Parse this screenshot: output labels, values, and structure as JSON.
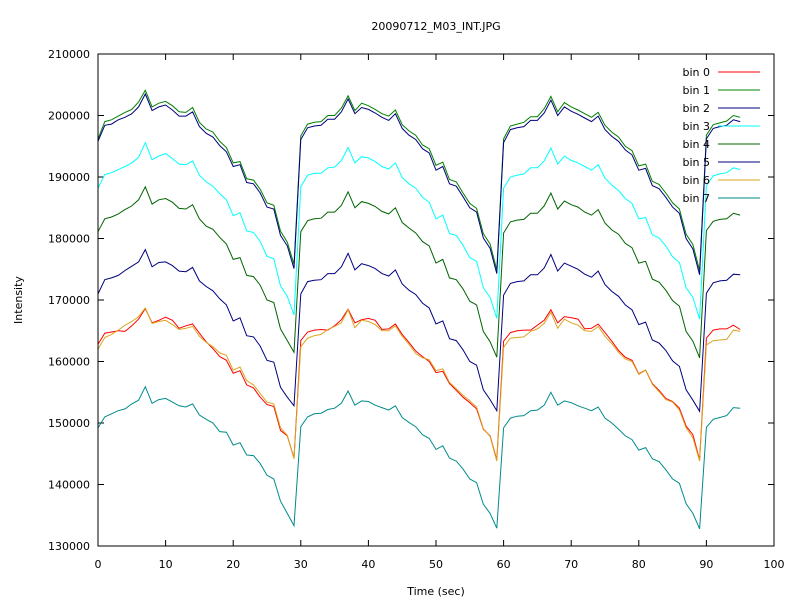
{
  "chart_data": {
    "type": "line",
    "title": "20090712_M03_INT.JPG",
    "xlabel": "Time (sec)",
    "ylabel": "Intensity",
    "xlim": [
      0,
      100
    ],
    "ylim": [
      130000,
      210000
    ],
    "x_ticks": [
      0,
      10,
      20,
      30,
      40,
      50,
      60,
      70,
      80,
      90,
      100
    ],
    "y_ticks": [
      130000,
      140000,
      150000,
      160000,
      170000,
      180000,
      190000,
      200000,
      210000
    ],
    "grid": false,
    "legend_position": "top-right",
    "x": [
      0,
      1,
      2,
      3,
      4,
      5,
      6,
      7,
      8,
      9,
      10,
      11,
      12,
      13,
      14,
      15,
      16,
      17,
      18,
      19,
      20,
      21,
      22,
      23,
      24,
      25,
      26,
      27,
      28,
      29,
      30,
      31,
      32,
      33,
      34,
      35,
      36,
      37,
      38,
      39,
      40,
      41,
      42,
      43,
      44,
      45,
      46,
      47,
      48,
      49,
      50,
      51,
      52,
      53,
      54,
      55,
      56,
      57,
      58,
      59,
      60,
      61,
      62,
      63,
      64,
      65,
      66,
      67,
      68,
      69,
      70,
      71,
      72,
      73,
      74,
      75,
      76,
      77,
      78,
      79,
      80,
      81,
      82,
      83,
      84,
      85,
      86,
      87,
      88,
      89,
      90,
      91,
      92,
      93,
      94,
      95
    ],
    "series": [
      {
        "name": "bin 0",
        "color": "#ff0000",
        "values": [
          162800,
          164600,
          164800,
          165000,
          164900,
          165800,
          166900,
          168600,
          166300,
          166700,
          167200,
          166700,
          165400,
          165800,
          166100,
          164600,
          163200,
          162100,
          160800,
          160200,
          158100,
          158500,
          156200,
          155700,
          154200,
          153000,
          152700,
          148800,
          147900,
          144300,
          163400,
          164800,
          165100,
          165200,
          165100,
          165800,
          166800,
          168500,
          166300,
          166800,
          167000,
          166700,
          165200,
          165300,
          166100,
          164400,
          163100,
          161700,
          160800,
          160000,
          158200,
          158400,
          156400,
          155300,
          154200,
          153300,
          152300,
          149000,
          147900,
          144000,
          163300,
          164700,
          165000,
          165100,
          165100,
          165900,
          166700,
          168400,
          166300,
          167300,
          167100,
          166900,
          165300,
          165400,
          166100,
          164700,
          163300,
          161800,
          160700,
          160200,
          158000,
          158600,
          156400,
          155300,
          154000,
          153500,
          152400,
          149500,
          148100,
          144000,
          163800,
          165100,
          165300,
          165300,
          165900,
          165200
        ]
      },
      {
        "name": "bin 1",
        "color": "#008000",
        "values": [
          196200,
          199000,
          199300,
          199900,
          200500,
          201000,
          202200,
          204100,
          201400,
          202000,
          202300,
          201600,
          200600,
          200500,
          201300,
          198900,
          197800,
          197300,
          195800,
          194800,
          192300,
          192500,
          189700,
          189500,
          188000,
          185800,
          185400,
          181200,
          179400,
          175800,
          196700,
          198600,
          198900,
          199000,
          200000,
          200000,
          201200,
          203200,
          200800,
          202000,
          201600,
          201000,
          200300,
          199900,
          200900,
          198500,
          197500,
          196800,
          195200,
          194600,
          191900,
          192400,
          189600,
          189200,
          187400,
          185700,
          184900,
          180800,
          179100,
          174900,
          196200,
          198300,
          198600,
          198900,
          199800,
          199800,
          201100,
          203100,
          200600,
          202100,
          201400,
          200900,
          200300,
          199700,
          200500,
          198400,
          197300,
          196500,
          195000,
          194300,
          191800,
          192100,
          189300,
          188800,
          187400,
          185800,
          184800,
          180700,
          179000,
          174800,
          196800,
          198500,
          198800,
          199100,
          200000,
          199700
        ]
      },
      {
        "name": "bin 2",
        "color": "#000080",
        "values": [
          195800,
          198400,
          198600,
          199300,
          199700,
          200300,
          201400,
          203500,
          200800,
          201400,
          201700,
          200900,
          199900,
          199900,
          200600,
          198200,
          197100,
          196500,
          195100,
          194100,
          191700,
          192000,
          189100,
          188900,
          187400,
          185100,
          184800,
          180500,
          178800,
          175100,
          196100,
          198000,
          198300,
          198400,
          199400,
          199400,
          200600,
          202700,
          200300,
          201300,
          201000,
          200400,
          199700,
          199200,
          200300,
          197900,
          196800,
          196100,
          194600,
          193900,
          191100,
          191700,
          188900,
          188500,
          186800,
          185000,
          184300,
          180100,
          178400,
          174300,
          195600,
          197700,
          198000,
          198200,
          199200,
          199200,
          200400,
          202500,
          200000,
          201400,
          200700,
          200200,
          199600,
          199000,
          199900,
          197700,
          196600,
          195800,
          194400,
          193600,
          191100,
          191400,
          188600,
          188100,
          186700,
          185100,
          184100,
          180000,
          178300,
          174100,
          196200,
          197900,
          198200,
          198400,
          199300,
          199000
        ]
      },
      {
        "name": "bin 3",
        "color": "#00ffff",
        "values": [
          188200,
          190400,
          190700,
          191200,
          191700,
          192300,
          193200,
          195600,
          192800,
          193400,
          193800,
          193000,
          192100,
          192000,
          192600,
          190300,
          189200,
          188500,
          187300,
          186300,
          183700,
          184200,
          181200,
          181000,
          179500,
          177100,
          176700,
          172300,
          170600,
          167600,
          188400,
          190300,
          190600,
          190600,
          191500,
          191600,
          192700,
          194800,
          192300,
          193300,
          193100,
          192500,
          191700,
          191300,
          192300,
          189900,
          188900,
          188200,
          186700,
          185900,
          183200,
          183800,
          180800,
          180500,
          178900,
          176900,
          176300,
          172000,
          170400,
          167000,
          188200,
          190000,
          190300,
          190500,
          191500,
          191500,
          192600,
          194700,
          192100,
          193400,
          192700,
          192300,
          191700,
          191100,
          192000,
          189800,
          188700,
          187800,
          186500,
          185700,
          183200,
          183400,
          180600,
          180100,
          178800,
          177000,
          176100,
          172000,
          170400,
          166900,
          188600,
          190200,
          190500,
          190700,
          191500,
          191200
        ]
      },
      {
        "name": "bin 4",
        "color": "#006400",
        "values": [
          181100,
          183200,
          183500,
          184000,
          184700,
          185300,
          186300,
          188400,
          185600,
          186300,
          186500,
          185900,
          184900,
          184800,
          185500,
          183200,
          182000,
          181500,
          180200,
          179100,
          176600,
          176900,
          174000,
          173800,
          172400,
          170000,
          169600,
          165300,
          163400,
          161500,
          181100,
          182900,
          183200,
          183300,
          184300,
          184300,
          185400,
          187600,
          185000,
          186000,
          185700,
          185200,
          184400,
          184000,
          185000,
          182600,
          181700,
          180900,
          179500,
          178800,
          176000,
          176600,
          173600,
          173300,
          171800,
          169800,
          169200,
          164900,
          163200,
          160700,
          180900,
          182700,
          183000,
          183100,
          184100,
          184100,
          185300,
          187400,
          184800,
          186100,
          185500,
          185100,
          184300,
          183800,
          184700,
          182500,
          181400,
          180700,
          179200,
          178500,
          176000,
          176300,
          173400,
          172900,
          171600,
          169900,
          169000,
          164900,
          163300,
          160600,
          181300,
          182800,
          183100,
          183200,
          184100,
          183800
        ]
      },
      {
        "name": "bin 5",
        "color": "#000080",
        "values": [
          171000,
          173300,
          173600,
          174000,
          174800,
          175500,
          176200,
          178200,
          175400,
          176100,
          176200,
          175600,
          174700,
          174600,
          175300,
          173100,
          172200,
          171500,
          170200,
          169200,
          166600,
          167100,
          164200,
          164000,
          162500,
          160200,
          159900,
          155800,
          154200,
          152800,
          171000,
          173000,
          173200,
          173300,
          174300,
          174300,
          175400,
          177600,
          174900,
          175900,
          175600,
          175100,
          174300,
          173900,
          174900,
          172600,
          171600,
          170900,
          169500,
          168700,
          166100,
          166600,
          163700,
          163400,
          161900,
          160000,
          159400,
          155400,
          153800,
          152000,
          170800,
          172700,
          173000,
          173100,
          174100,
          174100,
          175200,
          177400,
          174700,
          176000,
          175500,
          175000,
          174200,
          173700,
          174700,
          172500,
          171400,
          170600,
          169200,
          168400,
          166000,
          166400,
          163500,
          163000,
          161800,
          160100,
          159200,
          155400,
          153700,
          151900,
          171100,
          172800,
          173100,
          173200,
          174200,
          174100
        ]
      },
      {
        "name": "bin 6",
        "color": "#daa520",
        "values": [
          162000,
          163900,
          164400,
          165100,
          165900,
          166500,
          167300,
          168700,
          166200,
          166500,
          166700,
          166000,
          165200,
          165400,
          165700,
          164100,
          163100,
          162400,
          161400,
          161000,
          158600,
          159100,
          156900,
          156200,
          154800,
          153400,
          153100,
          149200,
          148000,
          144200,
          162400,
          163800,
          164200,
          164400,
          165200,
          165700,
          166300,
          168400,
          165500,
          166700,
          166500,
          166000,
          165000,
          165000,
          165800,
          164100,
          162800,
          161300,
          160600,
          160300,
          158500,
          158800,
          156600,
          155600,
          154500,
          153600,
          152600,
          149100,
          147800,
          143800,
          162300,
          163800,
          163900,
          164000,
          164900,
          165300,
          166200,
          168000,
          165400,
          166900,
          166300,
          165900,
          165000,
          164900,
          165700,
          164100,
          162900,
          161500,
          160400,
          160000,
          157900,
          158600,
          156300,
          155100,
          153800,
          153400,
          152100,
          149200,
          147600,
          143800,
          162700,
          163400,
          163500,
          163600,
          165100,
          164900
        ]
      },
      {
        "name": "bin 7",
        "color": "#008b8b",
        "values": [
          149200,
          151000,
          151500,
          152000,
          152300,
          153100,
          153700,
          155900,
          153200,
          153800,
          154000,
          153400,
          152800,
          152600,
          153100,
          151300,
          150600,
          150000,
          148600,
          148500,
          146400,
          146800,
          144800,
          144700,
          143400,
          141500,
          140900,
          137300,
          135300,
          133300,
          149400,
          151000,
          151500,
          151600,
          152200,
          152400,
          153200,
          155200,
          152900,
          153600,
          153500,
          152900,
          152500,
          152100,
          152800,
          150900,
          150100,
          149400,
          148100,
          147500,
          145700,
          146300,
          144300,
          143800,
          142500,
          140900,
          140300,
          136800,
          135300,
          132900,
          149200,
          150800,
          151100,
          151200,
          152000,
          152100,
          152900,
          155000,
          152900,
          153600,
          153300,
          152800,
          152400,
          152000,
          152600,
          150800,
          150000,
          149000,
          147900,
          147300,
          145600,
          146000,
          144200,
          143700,
          142400,
          140900,
          140200,
          136900,
          135300,
          132800,
          149300,
          150600,
          150900,
          151200,
          152500,
          152400
        ]
      }
    ]
  }
}
